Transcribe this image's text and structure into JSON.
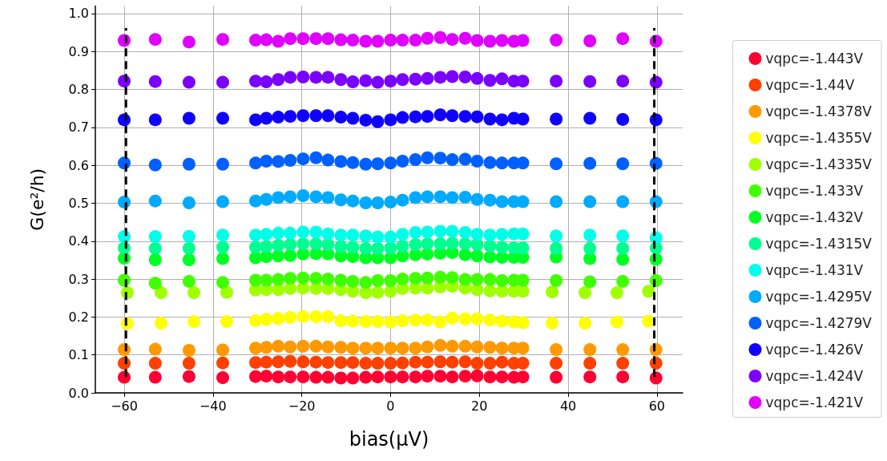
{
  "chart_data": {
    "type": "scatter",
    "xlabel": "bias(μV)",
    "ylabel": "G(e²/h)",
    "x": [
      -60,
      -53,
      -45.4,
      -37.8,
      -30.4,
      -28,
      -25.3,
      -22.6,
      -19.7,
      -16.8,
      -14.1,
      -11.2,
      -8.5,
      -5.6,
      -2.9,
      0,
      2.7,
      5.6,
      8.3,
      11.2,
      13.9,
      16.8,
      19.5,
      22.4,
      25.1,
      27.8,
      29.8,
      37.3,
      44.9,
      52.3,
      59.8
    ],
    "xlim": [
      -66.5,
      65.8
    ],
    "xticks": [
      -60,
      -40,
      -20,
      0,
      20,
      40,
      60
    ],
    "ylim": [
      0,
      1.02
    ],
    "yticks": [
      {
        "value": 0,
        "label": "0.0"
      },
      0.1,
      0.2,
      0.3,
      0.4,
      0.5,
      0.6,
      0.7,
      0.8,
      0.9,
      {
        "value": 1,
        "label": "1.0"
      }
    ],
    "grid": true,
    "legend": "right",
    "marker": "circle",
    "series": [
      {
        "name": "vqpc=-1.443V",
        "color": "#ff0033",
        "values": [
          0.041,
          0.041,
          0.043,
          0.04,
          0.043,
          0.044,
          0.042,
          0.042,
          0.042,
          0.041,
          0.041,
          0.039,
          0.039,
          0.041,
          0.042,
          0.042,
          0.042,
          0.042,
          0.044,
          0.044,
          0.042,
          0.044,
          0.045,
          0.042,
          0.042,
          0.041,
          0.042,
          0.041,
          0.042,
          0.042,
          0.039
        ]
      },
      {
        "name": "vqpc=-1.44V",
        "color": "#ff4000",
        "values": [
          0.078,
          0.078,
          0.078,
          0.079,
          0.08,
          0.081,
          0.082,
          0.083,
          0.082,
          0.081,
          0.08,
          0.08,
          0.08,
          0.078,
          0.078,
          0.078,
          0.079,
          0.081,
          0.081,
          0.082,
          0.081,
          0.082,
          0.078,
          0.078,
          0.081,
          0.078,
          0.078,
          0.078,
          0.078,
          0.078,
          0.078
        ]
      },
      {
        "name": "vqpc=-1.4378V",
        "color": "#ff9900",
        "values": [
          0.114,
          0.115,
          0.112,
          0.113,
          0.118,
          0.12,
          0.123,
          0.121,
          0.123,
          0.123,
          0.121,
          0.12,
          0.118,
          0.118,
          0.118,
          0.118,
          0.118,
          0.118,
          0.121,
          0.125,
          0.123,
          0.123,
          0.121,
          0.12,
          0.118,
          0.118,
          0.118,
          0.114,
          0.114,
          0.114,
          0.114
        ]
      },
      {
        "name": "vqpc=-1.4355V",
        "color": "#ffff00",
        "x": [
          -59.3,
          -51.7,
          -44.3,
          -36.9,
          -30.4,
          -28,
          -25.3,
          -22.6,
          -19.7,
          -16.8,
          -14.1,
          -11.2,
          -8.5,
          -5.6,
          -2.9,
          0,
          2.7,
          5.6,
          8.3,
          11.2,
          13.9,
          16.8,
          19.5,
          22.4,
          25.1,
          27.8,
          29.8,
          36.4,
          43.8,
          51,
          58.1
        ],
        "values": [
          0.183,
          0.184,
          0.188,
          0.188,
          0.19,
          0.194,
          0.196,
          0.199,
          0.201,
          0.201,
          0.201,
          0.19,
          0.189,
          0.188,
          0.188,
          0.187,
          0.19,
          0.192,
          0.192,
          0.187,
          0.197,
          0.195,
          0.195,
          0.192,
          0.189,
          0.187,
          0.185,
          0.184,
          0.184,
          0.187,
          0.189
        ]
      },
      {
        "name": "vqpc=-1.4335V",
        "color": "#a0ff00",
        "x": [
          -59.3,
          -51.7,
          -44.3,
          -36.9,
          -30.4,
          -28,
          -25.3,
          -22.6,
          -19.7,
          -16.8,
          -14.1,
          -11.2,
          -8.5,
          -5.6,
          -2.9,
          0,
          2.7,
          5.6,
          8.3,
          11.2,
          13.9,
          16.8,
          19.5,
          22.4,
          25.1,
          27.8,
          29.8,
          36.4,
          43.8,
          51,
          58.1
        ],
        "values": [
          0.264,
          0.264,
          0.264,
          0.265,
          0.271,
          0.272,
          0.272,
          0.275,
          0.276,
          0.275,
          0.275,
          0.272,
          0.268,
          0.264,
          0.265,
          0.268,
          0.275,
          0.276,
          0.276,
          0.279,
          0.281,
          0.276,
          0.272,
          0.269,
          0.268,
          0.268,
          0.268,
          0.266,
          0.264,
          0.264,
          0.268
        ]
      },
      {
        "name": "vqpc=-1.433V",
        "color": "#40ff00",
        "values": [
          0.297,
          0.289,
          0.294,
          0.291,
          0.297,
          0.297,
          0.299,
          0.302,
          0.303,
          0.302,
          0.3,
          0.297,
          0.294,
          0.291,
          0.296,
          0.296,
          0.3,
          0.302,
          0.303,
          0.305,
          0.304,
          0.299,
          0.299,
          0.299,
          0.296,
          0.297,
          0.297,
          0.296,
          0.293,
          0.294,
          0.296
        ]
      },
      {
        "name": "vqpc=-1.432V",
        "color": "#00ff22",
        "values": [
          0.355,
          0.351,
          0.351,
          0.354,
          0.356,
          0.359,
          0.361,
          0.362,
          0.366,
          0.367,
          0.366,
          0.361,
          0.359,
          0.356,
          0.356,
          0.356,
          0.361,
          0.364,
          0.366,
          0.368,
          0.37,
          0.364,
          0.361,
          0.358,
          0.357,
          0.357,
          0.357,
          0.358,
          0.354,
          0.352,
          0.352
        ]
      },
      {
        "name": "vqpc=-1.4315V",
        "color": "#00ff90",
        "values": [
          0.382,
          0.381,
          0.381,
          0.384,
          0.384,
          0.386,
          0.389,
          0.391,
          0.393,
          0.393,
          0.391,
          0.386,
          0.384,
          0.381,
          0.381,
          0.382,
          0.387,
          0.391,
          0.393,
          0.393,
          0.395,
          0.393,
          0.391,
          0.387,
          0.384,
          0.382,
          0.382,
          0.381,
          0.381,
          0.381,
          0.382
        ]
      },
      {
        "name": "vqpc=-1.431V",
        "color": "#00ffe8",
        "values": [
          0.412,
          0.412,
          0.413,
          0.416,
          0.416,
          0.418,
          0.421,
          0.421,
          0.424,
          0.424,
          0.419,
          0.416,
          0.416,
          0.414,
          0.411,
          0.411,
          0.418,
          0.423,
          0.424,
          0.426,
          0.426,
          0.423,
          0.418,
          0.416,
          0.418,
          0.419,
          0.419,
          0.414,
          0.416,
          0.414,
          0.409
        ]
      },
      {
        "name": "vqpc=-1.4295V",
        "color": "#00aaff",
        "values": [
          0.503,
          0.506,
          0.501,
          0.504,
          0.506,
          0.51,
          0.515,
          0.517,
          0.52,
          0.517,
          0.515,
          0.509,
          0.506,
          0.501,
          0.501,
          0.503,
          0.508,
          0.515,
          0.517,
          0.517,
          0.515,
          0.516,
          0.51,
          0.508,
          0.504,
          0.504,
          0.504,
          0.504,
          0.504,
          0.504,
          0.504
        ]
      },
      {
        "name": "vqpc=-1.4279V",
        "color": "#0060ff",
        "values": [
          0.606,
          0.601,
          0.603,
          0.603,
          0.606,
          0.611,
          0.61,
          0.613,
          0.617,
          0.62,
          0.614,
          0.61,
          0.607,
          0.603,
          0.604,
          0.606,
          0.611,
          0.615,
          0.62,
          0.619,
          0.615,
          0.616,
          0.611,
          0.607,
          0.606,
          0.606,
          0.606,
          0.604,
          0.605,
          0.604,
          0.605
        ]
      },
      {
        "name": "vqpc=-1.426V",
        "color": "#1000ff",
        "values": [
          0.72,
          0.72,
          0.724,
          0.724,
          0.72,
          0.724,
          0.727,
          0.729,
          0.731,
          0.731,
          0.731,
          0.727,
          0.724,
          0.719,
          0.715,
          0.72,
          0.726,
          0.728,
          0.729,
          0.733,
          0.731,
          0.729,
          0.728,
          0.722,
          0.72,
          0.724,
          0.722,
          0.722,
          0.724,
          0.721,
          0.72
        ]
      },
      {
        "name": "vqpc=-1.424V",
        "color": "#7a00ff",
        "values": [
          0.822,
          0.821,
          0.819,
          0.819,
          0.822,
          0.82,
          0.826,
          0.832,
          0.833,
          0.832,
          0.832,
          0.826,
          0.82,
          0.823,
          0.819,
          0.822,
          0.826,
          0.827,
          0.829,
          0.832,
          0.834,
          0.833,
          0.829,
          0.824,
          0.828,
          0.822,
          0.822,
          0.822,
          0.821,
          0.822,
          0.819
        ]
      },
      {
        "name": "vqpc=-1.421V",
        "color": "#e000ff",
        "values": [
          0.929,
          0.932,
          0.925,
          0.932,
          0.93,
          0.931,
          0.927,
          0.934,
          0.934,
          0.934,
          0.934,
          0.931,
          0.93,
          0.927,
          0.927,
          0.93,
          0.93,
          0.93,
          0.935,
          0.937,
          0.932,
          0.935,
          0.929,
          0.927,
          0.929,
          0.927,
          0.929,
          0.93,
          0.928,
          0.934,
          0.927
        ]
      },
      {
        "type": "line",
        "color": "#000000",
        "line_style": "dashed",
        "marker": "none",
        "x": [
          -59.6,
          -59.6
        ],
        "values": [
          0.042,
          0.962
        ]
      },
      {
        "type": "line",
        "color": "#000000",
        "line_style": "dashed",
        "marker": "none",
        "x": [
          59.4,
          59.4
        ],
        "values": [
          0.042,
          0.962
        ]
      }
    ]
  }
}
